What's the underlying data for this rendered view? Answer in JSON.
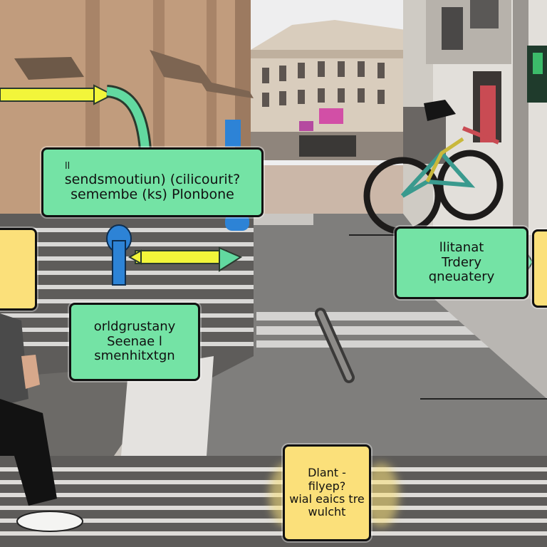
{
  "callouts": {
    "top_left": {
      "lines": [
        "ll",
        "sendsmoutiun) (cilicourit?",
        "semembe (ks) Plonbone"
      ]
    },
    "right": {
      "lines": [
        "llitanat",
        "Trdery",
        "qneuatery"
      ]
    },
    "mid_left": {
      "lines": [
        "orldgrustany",
        "Seenae l",
        "smenhitxtgn"
      ]
    },
    "bottom": {
      "lines": [
        "Dlant -",
        "filyep?",
        "wial eaics tre",
        "wulcht"
      ]
    }
  },
  "colors": {
    "callout_green": "#74e3a5",
    "callout_yellow": "#fbe07a",
    "arrow_yellow": "#f2f53a",
    "arrow_green": "#62d9a0",
    "connector_blue": "#2d83d6"
  }
}
